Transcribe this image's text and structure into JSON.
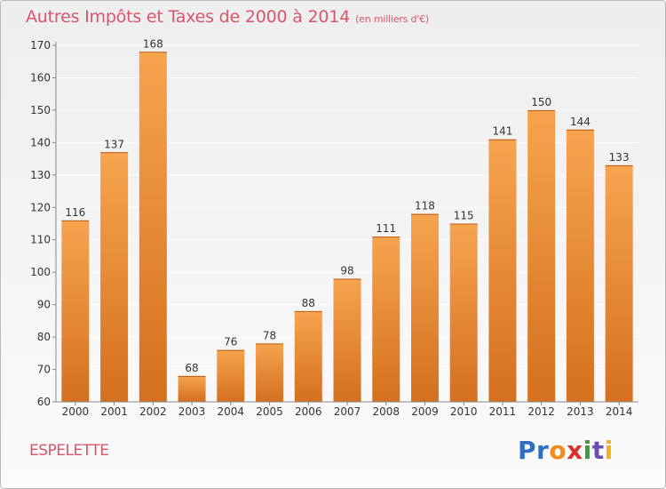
{
  "title": "Autres Impôts et Taxes de 2000 à 2014",
  "unit_note": "(en milliers d'€)",
  "place": "ESPELETTE",
  "logo": {
    "text": "Proxiti",
    "letters": [
      "P",
      "r",
      "o",
      "x",
      "i",
      "t",
      "i"
    ]
  },
  "colors": {
    "bar_light": "#f7a44f",
    "bar_dark": "#d4701e",
    "title": "#d8566b",
    "grid": "#ffffff"
  },
  "chart_data": {
    "type": "bar",
    "title": "Autres Impôts et Taxes de 2000 à 2014",
    "subtitle": "(en milliers d'€)",
    "xlabel": "",
    "ylabel": "",
    "categories": [
      "2000",
      "2001",
      "2002",
      "2003",
      "2004",
      "2005",
      "2006",
      "2007",
      "2008",
      "2009",
      "2010",
      "2011",
      "2012",
      "2013",
      "2014"
    ],
    "values": [
      116,
      137,
      168,
      68,
      76,
      78,
      88,
      98,
      111,
      118,
      115,
      141,
      150,
      144,
      133
    ],
    "ylim": [
      60,
      170
    ],
    "yticks": [
      60,
      70,
      80,
      90,
      100,
      110,
      120,
      130,
      140,
      150,
      160,
      170
    ],
    "grid": true,
    "data_labels": true
  }
}
